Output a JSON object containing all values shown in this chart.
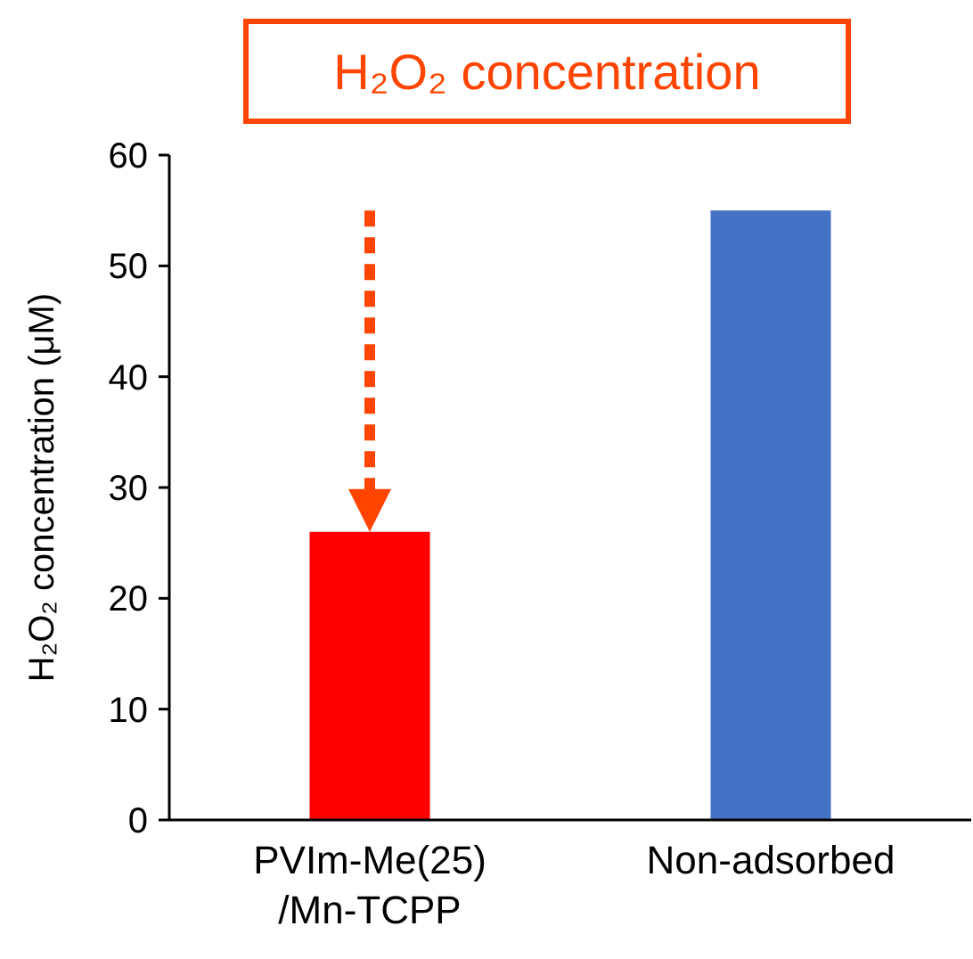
{
  "chart_data": {
    "type": "bar",
    "title": "H₂O₂ concentration",
    "ylabel": "H₂O₂ concentration (μM)",
    "categories": [
      "PVIm-Me(25)\n/Mn-TCPP",
      "Non-adsorbed"
    ],
    "values": [
      26,
      55
    ],
    "colors": [
      "#ff0000",
      "#4472c4"
    ],
    "ylim": [
      0,
      60
    ],
    "yticks": [
      0,
      10,
      20,
      30,
      40,
      50,
      60
    ],
    "grid": false
  }
}
